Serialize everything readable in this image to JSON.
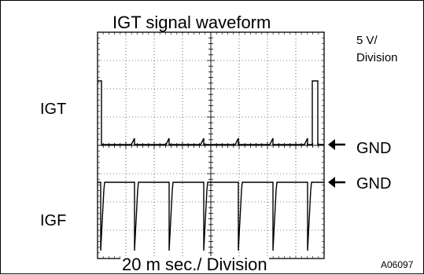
{
  "title": "IGT signal waveform",
  "vertical_scale": {
    "line1": "5 V/",
    "line2": "Division"
  },
  "time_scale": "20 m sec./ Division",
  "channels": {
    "igt": {
      "label": "IGT",
      "ground_label": "GND"
    },
    "igf": {
      "label": "IGF",
      "ground_label": "GND"
    }
  },
  "figure_code": "A06097",
  "icons": {
    "ground_pointer": "left-arrow-icon"
  },
  "colors": {
    "trace": "#000000",
    "background": "#ffffff"
  }
}
